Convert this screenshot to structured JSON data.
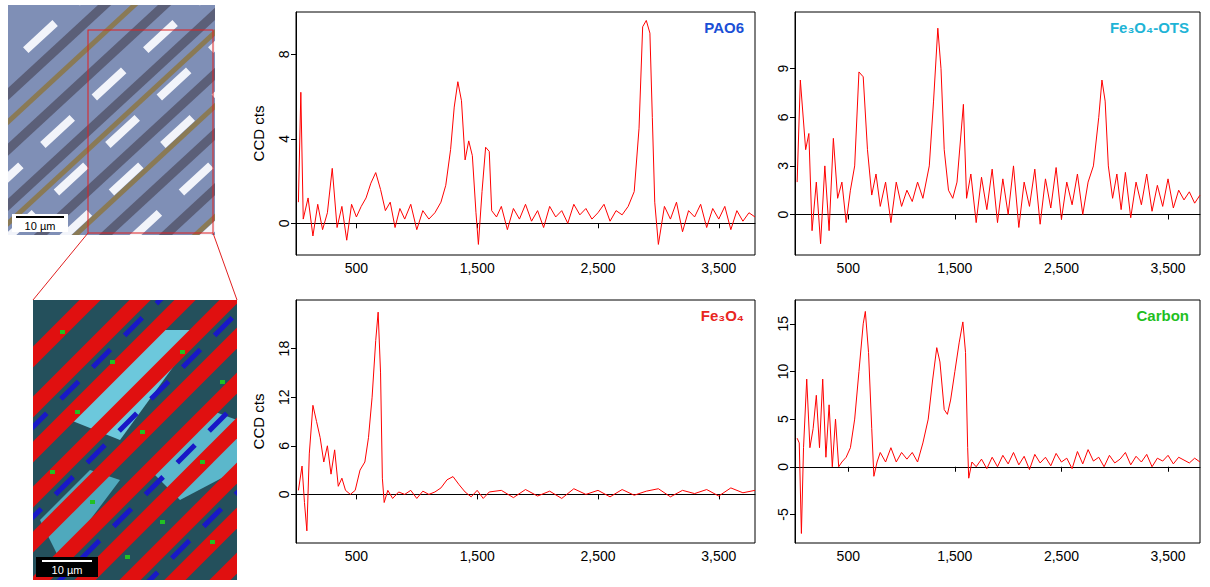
{
  "micrograph": {
    "scale_bar": "10 µm"
  },
  "raman_map": {
    "scale_bar": "10 µm"
  },
  "chart_data": [
    {
      "type": "line",
      "title": "PAO6",
      "ylabel": "CCD cts",
      "color": "#ff0000",
      "grid": false,
      "xlim": [
        0,
        3800
      ],
      "xticks": [
        500,
        1500,
        2500,
        3500
      ],
      "ylim": [
        -1.5,
        10
      ],
      "yticks": [
        0,
        4,
        8
      ],
      "x": [
        20,
        40,
        60,
        100,
        140,
        180,
        220,
        260,
        300,
        340,
        380,
        420,
        460,
        500,
        540,
        580,
        620,
        660,
        700,
        740,
        780,
        820,
        860,
        900,
        950,
        1000,
        1050,
        1100,
        1150,
        1200,
        1240,
        1280,
        1310,
        1340,
        1370,
        1400,
        1430,
        1460,
        1490,
        1510,
        1540,
        1570,
        1600,
        1620,
        1660,
        1700,
        1750,
        1800,
        1850,
        1900,
        1950,
        2000,
        2050,
        2100,
        2150,
        2200,
        2250,
        2300,
        2350,
        2400,
        2450,
        2500,
        2550,
        2600,
        2650,
        2700,
        2750,
        2800,
        2840,
        2870,
        2900,
        2930,
        2950,
        2970,
        3000,
        3050,
        3100,
        3150,
        3200,
        3250,
        3300,
        3350,
        3400,
        3450,
        3500,
        3550,
        3600,
        3650,
        3700,
        3750,
        3800
      ],
      "values": [
        1.0,
        6.2,
        0.2,
        1.2,
        -0.6,
        0.9,
        -0.3,
        0.5,
        2.6,
        -0.2,
        0.8,
        -0.8,
        0.9,
        0.3,
        0.8,
        1.2,
        1.9,
        2.4,
        1.6,
        0.6,
        1.0,
        -0.2,
        0.7,
        0.2,
        0.9,
        -0.3,
        0.6,
        0.2,
        0.5,
        1.0,
        1.8,
        3.5,
        5.5,
        6.7,
        5.8,
        3.0,
        3.9,
        3.2,
        0.5,
        -1.0,
        1.5,
        3.6,
        3.4,
        0.6,
        0.3,
        0.8,
        -0.3,
        0.7,
        0.2,
        0.9,
        0.1,
        0.6,
        -0.2,
        0.8,
        0.3,
        0.6,
        0.0,
        0.9,
        0.4,
        0.7,
        0.2,
        0.5,
        0.9,
        0.1,
        0.6,
        0.4,
        0.8,
        1.5,
        4.5,
        9.3,
        9.6,
        9.0,
        5.0,
        1.0,
        -1.0,
        0.8,
        0.2,
        1.0,
        -0.4,
        0.6,
        0.3,
        0.9,
        -0.2,
        0.7,
        0.2,
        0.8,
        -0.3,
        0.6,
        0.1,
        0.5,
        0.3
      ]
    },
    {
      "type": "line",
      "title": "Fe₃O₄-OTS",
      "color": "#ff0000",
      "grid": false,
      "xlim": [
        0,
        3800
      ],
      "xticks": [
        500,
        1500,
        2500,
        3500
      ],
      "ylim": [
        -2.5,
        12.5
      ],
      "yticks": [
        0,
        3,
        6,
        9
      ],
      "x": [
        20,
        50,
        100,
        130,
        160,
        200,
        240,
        280,
        320,
        360,
        400,
        440,
        480,
        520,
        560,
        600,
        640,
        680,
        720,
        760,
        800,
        850,
        900,
        950,
        1000,
        1050,
        1100,
        1150,
        1200,
        1260,
        1300,
        1340,
        1370,
        1400,
        1440,
        1480,
        1520,
        1580,
        1610,
        1650,
        1700,
        1750,
        1800,
        1850,
        1900,
        1950,
        2000,
        2050,
        2100,
        2150,
        2200,
        2250,
        2300,
        2350,
        2400,
        2450,
        2500,
        2550,
        2600,
        2650,
        2700,
        2750,
        2800,
        2850,
        2880,
        2910,
        2940,
        2980,
        3020,
        3060,
        3100,
        3150,
        3200,
        3250,
        3300,
        3350,
        3400,
        3450,
        3500,
        3550,
        3600,
        3650,
        3700,
        3750,
        3800
      ],
      "values": [
        2,
        8.3,
        4,
        5,
        -1,
        2,
        -1.8,
        3,
        -1,
        4.7,
        1,
        2,
        -0.5,
        1.5,
        3,
        8.8,
        8.5,
        4,
        1.2,
        2.5,
        0.5,
        2,
        -0.5,
        2,
        0.5,
        1.5,
        0.8,
        2,
        1,
        3,
        7,
        11.5,
        9,
        4,
        1.5,
        1,
        2,
        6.8,
        1,
        2.5,
        -0.5,
        2.3,
        0.3,
        2.8,
        -0.5,
        2.2,
        0,
        3,
        -0.8,
        2,
        0.5,
        2.8,
        -0.6,
        2.2,
        0.4,
        2.9,
        -0.3,
        2,
        0.6,
        2.5,
        0,
        2,
        3,
        6,
        8.3,
        7,
        3,
        1,
        2.5,
        0.3,
        2.6,
        -0.2,
        2,
        0.6,
        2.5,
        0.2,
        1.8,
        0.5,
        2.2,
        0.4,
        1.5,
        0.9,
        1.4,
        0.7,
        1.2
      ]
    },
    {
      "type": "line",
      "title": "Fe₃O₄",
      "ylabel": "CCD cts",
      "color": "#ff0000",
      "grid": false,
      "xlim": [
        0,
        3800
      ],
      "xticks": [
        500,
        1500,
        2500,
        3500
      ],
      "ylim": [
        -6,
        24
      ],
      "yticks": [
        0,
        6,
        12,
        18
      ],
      "x": [
        20,
        50,
        70,
        90,
        110,
        140,
        170,
        200,
        230,
        260,
        290,
        320,
        350,
        380,
        410,
        450,
        490,
        530,
        570,
        600,
        630,
        660,
        680,
        700,
        715,
        730,
        760,
        800,
        850,
        900,
        950,
        1000,
        1050,
        1100,
        1150,
        1200,
        1250,
        1300,
        1350,
        1400,
        1450,
        1500,
        1550,
        1600,
        1700,
        1800,
        1900,
        2000,
        2100,
        2200,
        2300,
        2400,
        2500,
        2600,
        2700,
        2800,
        2900,
        3000,
        3100,
        3200,
        3300,
        3400,
        3500,
        3600,
        3700,
        3800
      ],
      "values": [
        0.5,
        3.5,
        -1,
        -4.5,
        5,
        11,
        9,
        7,
        4,
        6,
        2.5,
        5.5,
        1,
        2,
        0.5,
        0,
        0.5,
        3,
        4,
        7,
        12,
        19,
        22.5,
        15,
        2,
        -1,
        0.5,
        -0.5,
        0.3,
        0,
        0.5,
        -0.5,
        0.4,
        0,
        0.3,
        0.8,
        1.8,
        2.2,
        1.2,
        0.3,
        -0.3,
        0.5,
        -0.5,
        0.3,
        0.5,
        -0.4,
        0.6,
        -0.2,
        0.4,
        -0.5,
        0.7,
        0,
        0.5,
        -0.3,
        0.6,
        -0.1,
        0.4,
        0.7,
        -0.3,
        0.5,
        0.1,
        0.6,
        -0.2,
        0.8,
        0.2,
        0.5
      ]
    },
    {
      "type": "line",
      "title": "Carbon",
      "color": "#ff0000",
      "grid": false,
      "xlim": [
        0,
        3800
      ],
      "xticks": [
        500,
        1500,
        2500,
        3500
      ],
      "ylim": [
        -8,
        17.5
      ],
      "yticks": [
        -5,
        0,
        5,
        10,
        15
      ],
      "x": [
        20,
        40,
        60,
        80,
        110,
        140,
        170,
        200,
        230,
        260,
        290,
        320,
        350,
        380,
        410,
        440,
        480,
        520,
        560,
        600,
        640,
        660,
        690,
        720,
        740,
        770,
        800,
        850,
        900,
        950,
        1000,
        1050,
        1100,
        1150,
        1200,
        1250,
        1290,
        1330,
        1360,
        1400,
        1430,
        1460,
        1500,
        1540,
        1575,
        1600,
        1620,
        1630,
        1660,
        1700,
        1750,
        1800,
        1850,
        1900,
        1950,
        2000,
        2050,
        2100,
        2150,
        2200,
        2250,
        2300,
        2350,
        2400,
        2450,
        2500,
        2550,
        2600,
        2650,
        2700,
        2750,
        2800,
        2850,
        2900,
        2950,
        3000,
        3050,
        3100,
        3150,
        3200,
        3250,
        3300,
        3350,
        3400,
        3450,
        3500,
        3550,
        3600,
        3650,
        3700,
        3750,
        3800
      ],
      "values": [
        3,
        2.5,
        -7,
        2,
        9.2,
        2,
        4,
        7.5,
        2,
        9.2,
        1,
        6.5,
        0,
        5,
        0,
        0.5,
        1,
        2,
        5,
        10,
        15,
        16.3,
        12,
        4,
        -1,
        0.5,
        1.5,
        0.5,
        2,
        0.5,
        1.5,
        0.8,
        1.5,
        0.5,
        2.5,
        5,
        9,
        12.5,
        11,
        6,
        5.5,
        7,
        10,
        13,
        15.2,
        12,
        2,
        -1.2,
        0.5,
        0,
        0.8,
        -0.2,
        1,
        0,
        1.2,
        0.3,
        1.5,
        0.2,
        1.1,
        -0.3,
        1.3,
        0.4,
        1,
        0.1,
        1.4,
        0.5,
        0.9,
        -0.2,
        1.6,
        0.3,
        1.8,
        0.6,
        1,
        0,
        1.2,
        0.4,
        0.8,
        1.5,
        0.2,
        1.1,
        0.5,
        1.3,
        0,
        0.9,
        0.6,
        1.2,
        0.3,
        1,
        0.7,
        0.4,
        0.9,
        0.5
      ]
    }
  ]
}
